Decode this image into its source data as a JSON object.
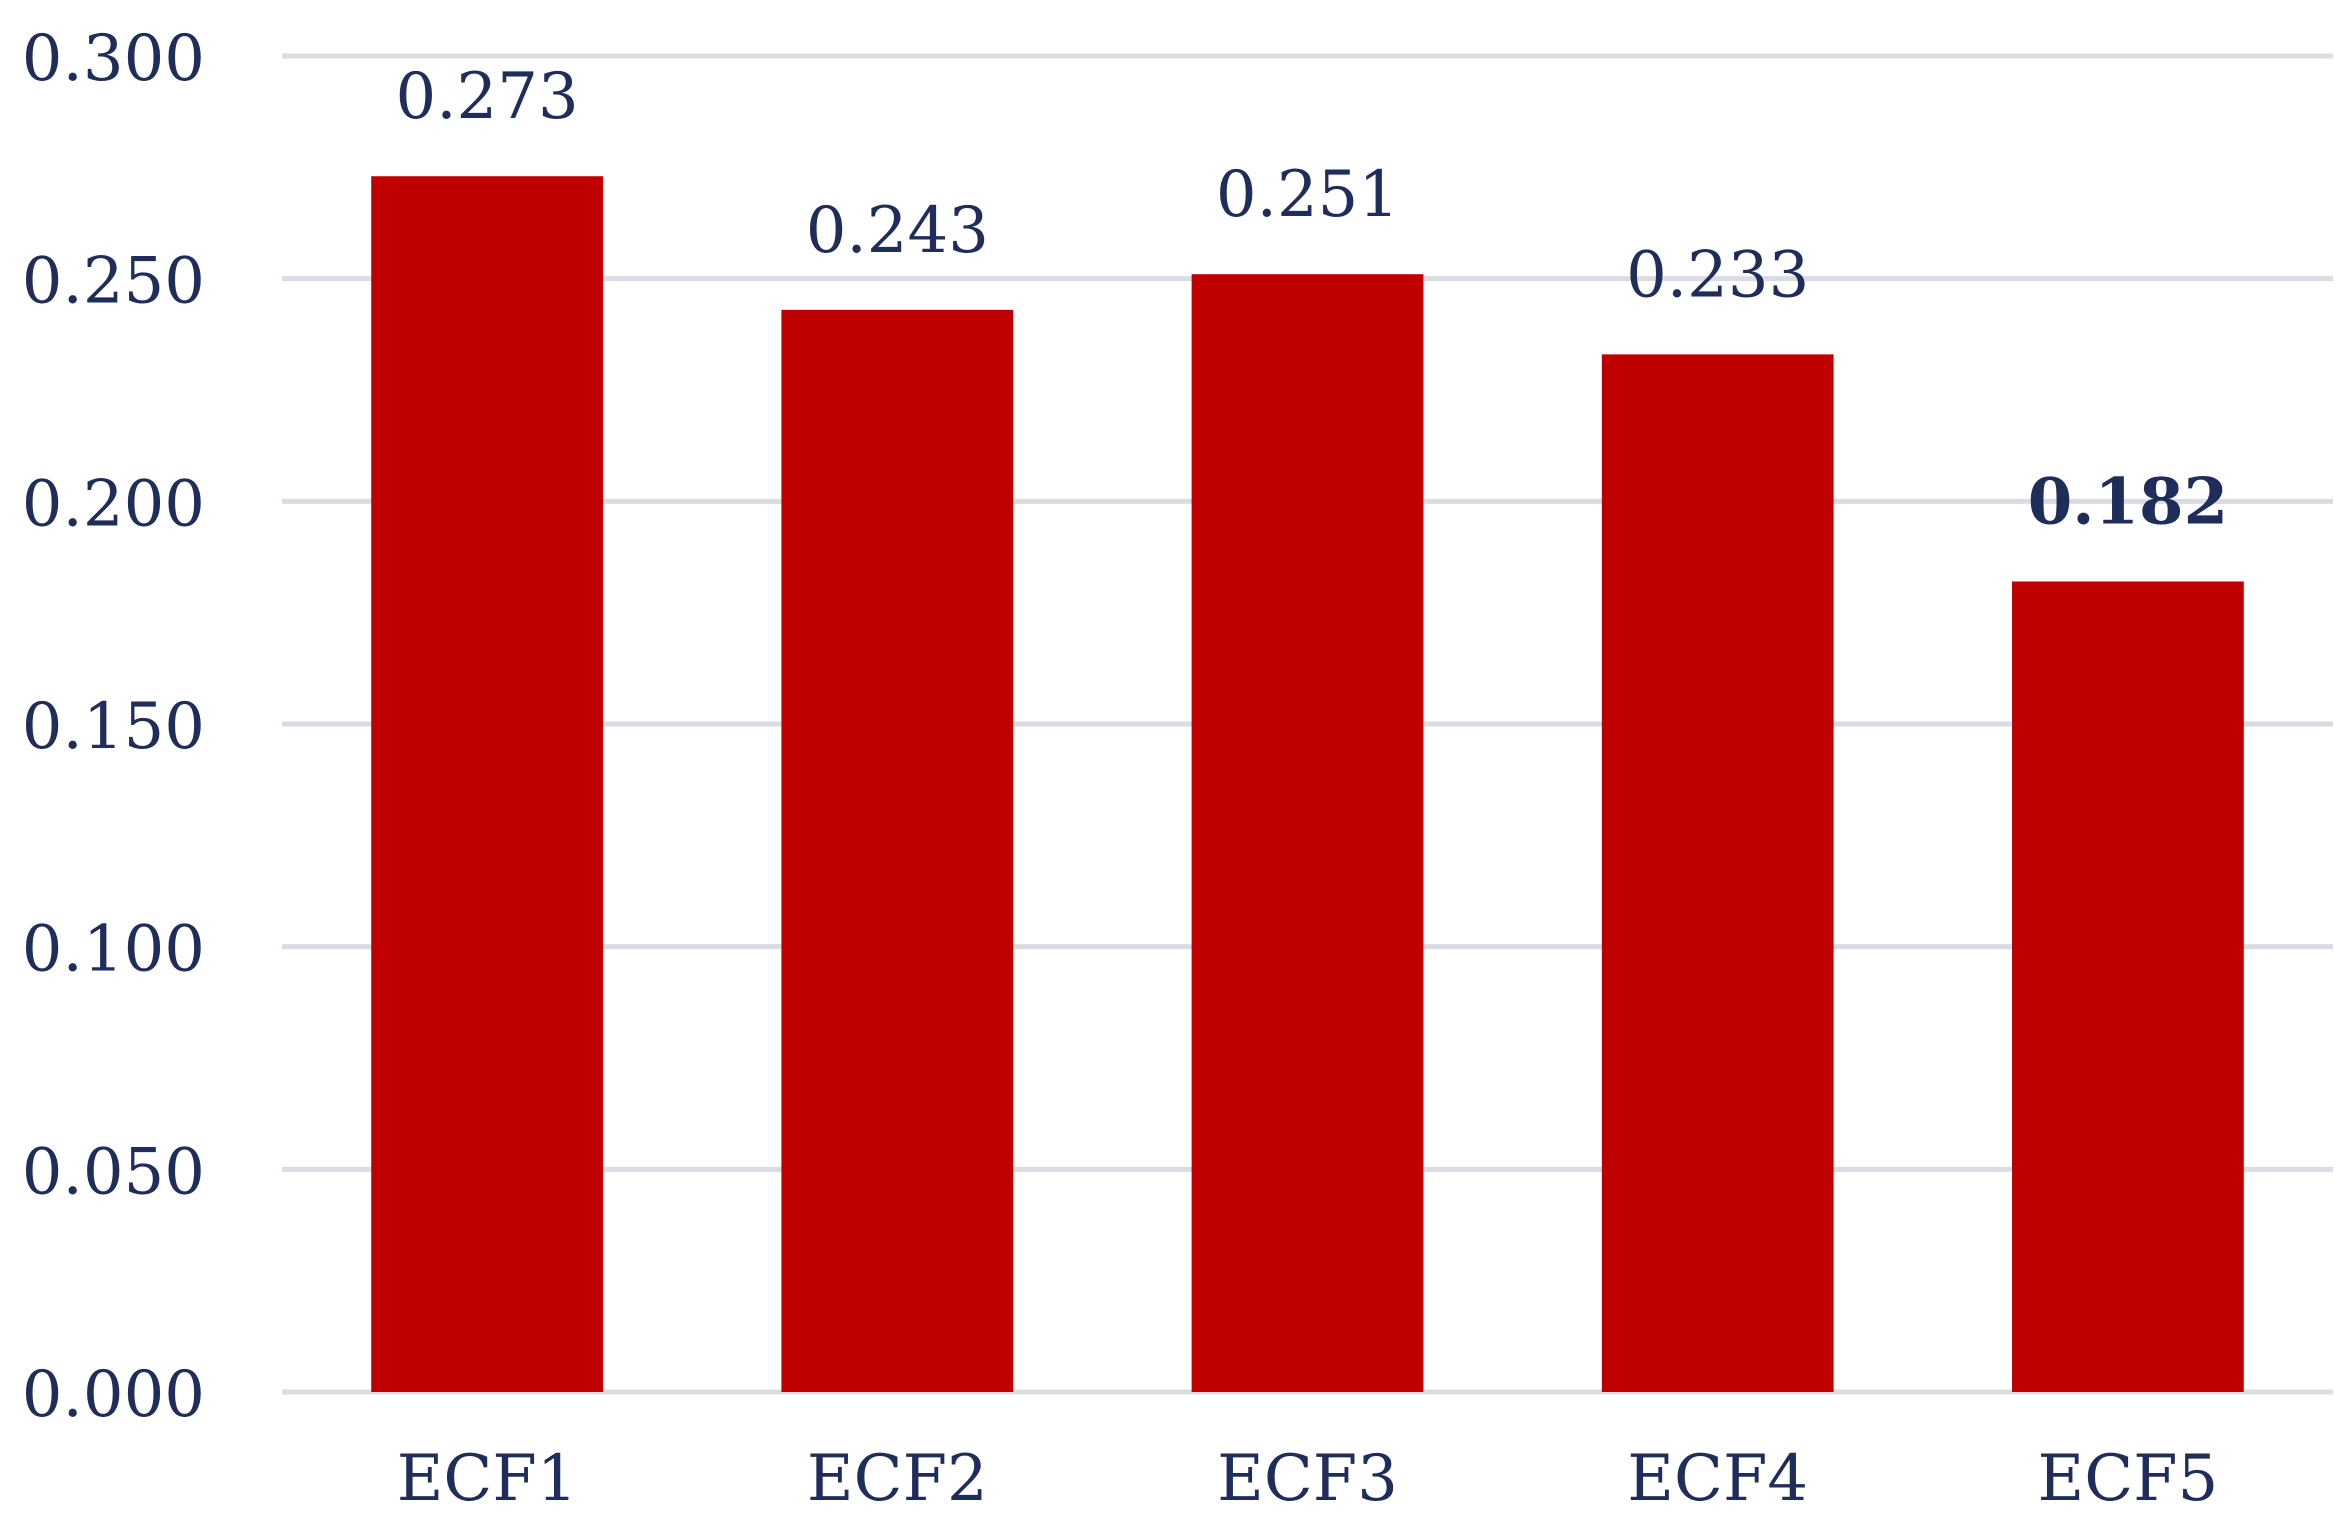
{
  "chart_data": {
    "type": "bar",
    "categories": [
      "ECF1",
      "ECF2",
      "ECF3",
      "ECF4",
      "ECF5"
    ],
    "values": [
      0.273,
      0.243,
      0.251,
      0.233,
      0.182
    ],
    "data_labels": [
      "0.273",
      "0.243",
      "0.251",
      "0.233",
      "0.182"
    ],
    "highlighted_label_index": 4,
    "ylim": [
      0,
      0.3
    ],
    "yticks": [
      0.0,
      0.05,
      0.1,
      0.15,
      0.2,
      0.25,
      0.3
    ],
    "ytick_labels": [
      "0.000",
      "0.050",
      "0.100",
      "0.150",
      "0.200",
      "0.250",
      "0.300"
    ],
    "grid": true,
    "legend": "none",
    "colors": {
      "bar": "#c00000",
      "text": "#1f2d5a",
      "grid": "#d9dde3"
    }
  }
}
